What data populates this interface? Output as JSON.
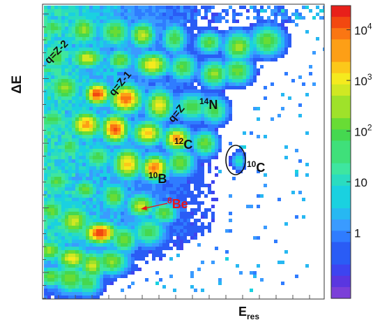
{
  "chart_data": {
    "type": "heatmap",
    "title": "",
    "xlabel": {
      "base": "E",
      "sub": "res"
    },
    "ylabel": "ΔE",
    "grid": false,
    "x_ticks_labeled": false,
    "y_ticks_labeled": false,
    "colorbar": {
      "scale": "log",
      "range": [
        0.05,
        30000
      ],
      "tick_labels": [
        {
          "value": 1,
          "label": "1",
          "sup": ""
        },
        {
          "value": 10,
          "label": "10",
          "sup": ""
        },
        {
          "value": 100,
          "label": "10",
          "sup": "2"
        },
        {
          "value": 1000,
          "label": "10",
          "sup": "3"
        },
        {
          "value": 10000,
          "label": "10",
          "sup": "4"
        }
      ]
    },
    "annotations": [
      {
        "id": "q-z-2",
        "text": "q=Z-2",
        "mass": "",
        "color": "#111111"
      },
      {
        "id": "q-z-1",
        "text": "q=Z-1",
        "mass": "",
        "color": "#111111"
      },
      {
        "id": "q-z",
        "text": "q=Z",
        "mass": "",
        "color": "#111111"
      },
      {
        "id": "n14",
        "text": "N",
        "mass": "14",
        "color": "#111111"
      },
      {
        "id": "c12",
        "text": "C",
        "mass": "12",
        "color": "#111111"
      },
      {
        "id": "c10",
        "text": "C",
        "mass": "10",
        "color": "#111111"
      },
      {
        "id": "b10",
        "text": "B",
        "mass": "10",
        "color": "#111111"
      },
      {
        "id": "be8",
        "text": "Be",
        "mass": "8",
        "color": "#e8141a"
      }
    ],
    "markers": [
      {
        "id": "c10-ellipse",
        "shape": "ellipse",
        "target": "c10"
      },
      {
        "id": "be8-arrow",
        "shape": "arrow",
        "target": "be8"
      }
    ]
  }
}
